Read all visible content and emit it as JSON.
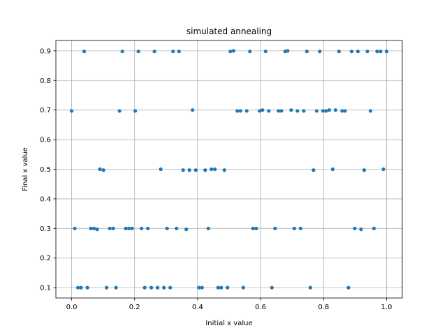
{
  "chart_data": {
    "type": "scatter",
    "title": "simulated annealing",
    "xlabel": "Initial x value",
    "ylabel": "Final x value",
    "xlim": [
      -0.05,
      1.05
    ],
    "ylim": [
      0.065,
      0.935
    ],
    "xticks": [
      0.0,
      0.2,
      0.4,
      0.6,
      0.8,
      1.0
    ],
    "xtick_labels": [
      "0.0",
      "0.2",
      "0.4",
      "0.6",
      "0.8",
      "1.0"
    ],
    "yticks": [
      0.1,
      0.2,
      0.3,
      0.4,
      0.5,
      0.6,
      0.7,
      0.8,
      0.9
    ],
    "ytick_labels": [
      "0.1",
      "0.2",
      "0.3",
      "0.4",
      "0.5",
      "0.6",
      "0.7",
      "0.8",
      "0.9"
    ],
    "grid": true,
    "marker_color": "#1f77b4",
    "series": [
      {
        "points": [
          [
            0.04,
            0.898
          ],
          [
            0.161,
            0.898
          ],
          [
            0.212,
            0.898
          ],
          [
            0.263,
            0.898
          ],
          [
            0.322,
            0.898
          ],
          [
            0.341,
            0.898
          ],
          [
            0.504,
            0.898
          ],
          [
            0.514,
            0.9
          ],
          [
            0.566,
            0.898
          ],
          [
            0.616,
            0.898
          ],
          [
            0.678,
            0.898
          ],
          [
            0.686,
            0.9
          ],
          [
            0.747,
            0.898
          ],
          [
            0.788,
            0.898
          ],
          [
            0.849,
            0.898
          ],
          [
            0.889,
            0.898
          ],
          [
            0.909,
            0.898
          ],
          [
            0.939,
            0.898
          ],
          [
            0.97,
            0.898
          ],
          [
            0.981,
            0.898
          ],
          [
            1.0,
            0.898
          ],
          [
            0.0,
            0.697
          ],
          [
            0.152,
            0.697
          ],
          [
            0.202,
            0.697
          ],
          [
            0.384,
            0.7
          ],
          [
            0.526,
            0.697
          ],
          [
            0.536,
            0.697
          ],
          [
            0.556,
            0.697
          ],
          [
            0.597,
            0.697
          ],
          [
            0.606,
            0.7
          ],
          [
            0.626,
            0.697
          ],
          [
            0.657,
            0.697
          ],
          [
            0.666,
            0.697
          ],
          [
            0.697,
            0.7
          ],
          [
            0.717,
            0.697
          ],
          [
            0.737,
            0.697
          ],
          [
            0.778,
            0.697
          ],
          [
            0.798,
            0.697
          ],
          [
            0.808,
            0.697
          ],
          [
            0.818,
            0.7
          ],
          [
            0.838,
            0.7
          ],
          [
            0.859,
            0.697
          ],
          [
            0.868,
            0.697
          ],
          [
            0.949,
            0.697
          ],
          [
            0.09,
            0.5
          ],
          [
            0.101,
            0.497
          ],
          [
            0.283,
            0.5
          ],
          [
            0.354,
            0.497
          ],
          [
            0.374,
            0.497
          ],
          [
            0.394,
            0.497
          ],
          [
            0.424,
            0.497
          ],
          [
            0.444,
            0.5
          ],
          [
            0.455,
            0.5
          ],
          [
            0.485,
            0.497
          ],
          [
            0.768,
            0.497
          ],
          [
            0.829,
            0.5
          ],
          [
            0.929,
            0.497
          ],
          [
            0.99,
            0.5
          ],
          [
            0.01,
            0.3
          ],
          [
            0.061,
            0.3
          ],
          [
            0.071,
            0.3
          ],
          [
            0.081,
            0.297
          ],
          [
            0.121,
            0.3
          ],
          [
            0.132,
            0.3
          ],
          [
            0.172,
            0.3
          ],
          [
            0.182,
            0.3
          ],
          [
            0.192,
            0.3
          ],
          [
            0.222,
            0.3
          ],
          [
            0.242,
            0.3
          ],
          [
            0.303,
            0.3
          ],
          [
            0.333,
            0.3
          ],
          [
            0.364,
            0.297
          ],
          [
            0.434,
            0.3
          ],
          [
            0.576,
            0.3
          ],
          [
            0.586,
            0.3
          ],
          [
            0.646,
            0.3
          ],
          [
            0.707,
            0.3
          ],
          [
            0.727,
            0.3
          ],
          [
            0.899,
            0.3
          ],
          [
            0.919,
            0.297
          ],
          [
            0.96,
            0.3
          ],
          [
            0.02,
            0.1
          ],
          [
            0.03,
            0.1
          ],
          [
            0.05,
            0.1
          ],
          [
            0.111,
            0.1
          ],
          [
            0.141,
            0.1
          ],
          [
            0.232,
            0.1
          ],
          [
            0.253,
            0.1
          ],
          [
            0.273,
            0.1
          ],
          [
            0.293,
            0.1
          ],
          [
            0.313,
            0.1
          ],
          [
            0.404,
            0.1
          ],
          [
            0.414,
            0.1
          ],
          [
            0.465,
            0.1
          ],
          [
            0.475,
            0.1
          ],
          [
            0.495,
            0.1
          ],
          [
            0.545,
            0.1
          ],
          [
            0.636,
            0.1
          ],
          [
            0.758,
            0.1
          ],
          [
            0.879,
            0.1
          ]
        ]
      }
    ]
  }
}
